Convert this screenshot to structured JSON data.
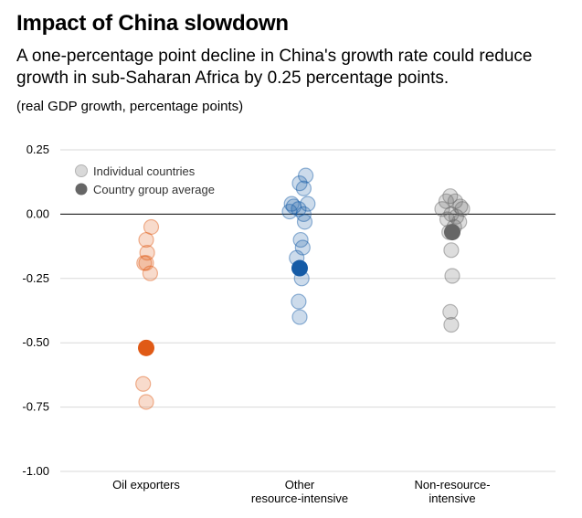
{
  "header": {
    "title": "Impact of China slowdown",
    "subtitle": "A one-percentage point decline in China's growth rate could reduce growth in sub-Saharan Africa by 0.25 percentage points.",
    "units": "(real GDP growth, percentage points)"
  },
  "chart_data": {
    "type": "scatter",
    "title": "Impact of China slowdown",
    "ylabel": "real GDP growth, percentage points",
    "ylim": [
      -1.0,
      0.25
    ],
    "yticks": [
      0.25,
      0.0,
      -0.25,
      -0.5,
      -0.75,
      -1.0
    ],
    "ytick_labels": [
      "0.25",
      "0.00",
      "-0.25",
      "-0.50",
      "-0.75",
      "-1.00"
    ],
    "grid": true,
    "legend": {
      "position": "top-left",
      "individual_label": "Individual countries",
      "average_label": "Country group average",
      "individual_color": "#b3b3b3",
      "average_color": "#666666"
    },
    "categories": [
      {
        "label_lines": [
          "Oil exporters"
        ],
        "color": "#e05a16",
        "individual": [
          [
            -0.02,
            -0.19
          ],
          [
            0.0,
            -0.1
          ],
          [
            0.01,
            -0.15
          ],
          [
            0.05,
            -0.05
          ],
          [
            0.04,
            -0.23
          ],
          [
            0.0,
            -0.19
          ],
          [
            -0.03,
            -0.66
          ],
          [
            0.0,
            -0.73
          ]
        ],
        "average": -0.52
      },
      {
        "label_lines": [
          "Other",
          "resource-intensive"
        ],
        "color": "#155ba6",
        "individual": [
          [
            -0.08,
            0.04
          ],
          [
            -0.1,
            0.01
          ],
          [
            -0.06,
            0.03
          ],
          [
            -0.01,
            0.02
          ],
          [
            0.04,
            0.0
          ],
          [
            0.08,
            0.04
          ],
          [
            0.0,
            0.12
          ],
          [
            0.06,
            0.15
          ],
          [
            0.04,
            0.1
          ],
          [
            0.05,
            -0.03
          ],
          [
            0.01,
            -0.1
          ],
          [
            0.03,
            -0.13
          ],
          [
            -0.03,
            -0.17
          ],
          [
            0.02,
            -0.25
          ],
          [
            -0.01,
            -0.34
          ],
          [
            0.0,
            -0.4
          ]
        ],
        "average": -0.21
      },
      {
        "label_lines": [
          "Non-resource-",
          "intensive"
        ],
        "color": "#666666",
        "individual": [
          [
            -0.1,
            0.02
          ],
          [
            -0.06,
            0.05
          ],
          [
            -0.02,
            0.07
          ],
          [
            0.03,
            0.05
          ],
          [
            0.08,
            0.03
          ],
          [
            0.1,
            0.02
          ],
          [
            -0.05,
            -0.02
          ],
          [
            -0.01,
            0.0
          ],
          [
            0.04,
            -0.01
          ],
          [
            0.07,
            -0.03
          ],
          [
            0.02,
            -0.05
          ],
          [
            -0.03,
            -0.07
          ],
          [
            -0.01,
            -0.14
          ],
          [
            0.0,
            -0.24
          ],
          [
            -0.02,
            -0.38
          ],
          [
            -0.01,
            -0.43
          ]
        ],
        "average": -0.07
      }
    ]
  }
}
